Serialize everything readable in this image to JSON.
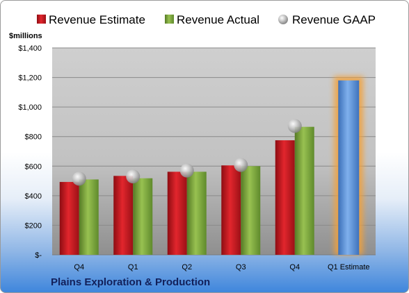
{
  "company": "Plains Exploration & Production",
  "chart_data": {
    "type": "bar",
    "unit_label": "$millions",
    "categories": [
      "Q4",
      "Q1",
      "Q2",
      "Q3",
      "Q4",
      "Q1 Estimate"
    ],
    "series": [
      {
        "name": "Revenue Estimate",
        "kind": "bar",
        "color": "#c8161d",
        "values": [
          493,
          534,
          562,
          605,
          775,
          null
        ]
      },
      {
        "name": "Revenue Actual",
        "kind": "bar",
        "color": "#7aa23c",
        "values": [
          510,
          518,
          562,
          600,
          866,
          null
        ]
      },
      {
        "name": "Revenue GAAP",
        "kind": "marker",
        "color": "#b4b4b4",
        "values": [
          515,
          530,
          570,
          608,
          872,
          null
        ]
      }
    ],
    "estimate_bar": {
      "category": "Q1 Estimate",
      "value": 1180,
      "color": "#5a8ed6",
      "glow": "#f2a13a"
    },
    "yticks": [
      0,
      200,
      400,
      600,
      800,
      1000,
      1200,
      1400
    ],
    "ytick_labels": [
      "$-",
      "$200",
      "$400",
      "$600",
      "$800",
      "$1,000",
      "$1,200",
      "$1,400"
    ],
    "ylim": [
      0,
      1400
    ],
    "grid": true,
    "legend_position": "top"
  }
}
